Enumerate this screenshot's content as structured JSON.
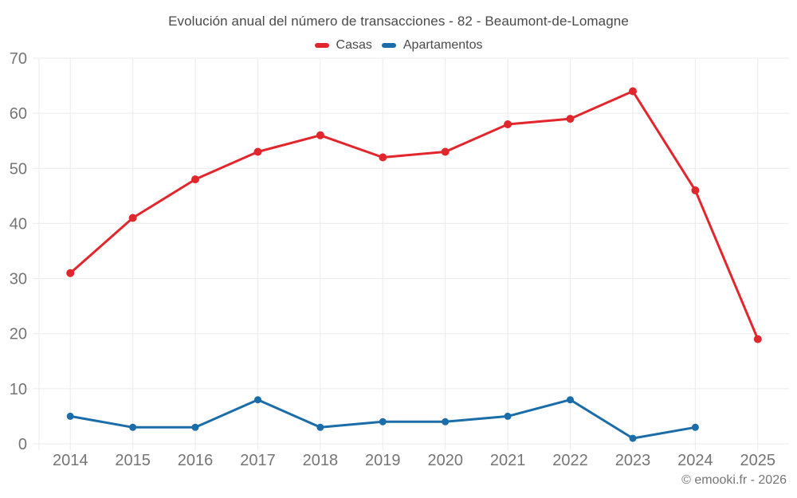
{
  "title": "Evolución anual del número de transacciones - 82 - Beaumont-de-Lomagne",
  "footer": {
    "copyright": "© emooki.fr - 2026"
  },
  "colors": {
    "casas": "#e2262d",
    "apartamentos": "#1a6da8",
    "grid": "#ebebeb",
    "axis_labels": "#757575",
    "text": "#4a4a4a"
  },
  "chart_data": {
    "type": "line",
    "title": "Evolución anual del número de transacciones - 82 - Beaumont-de-Lomagne",
    "categories": [
      "2014",
      "2015",
      "2016",
      "2017",
      "2018",
      "2019",
      "2020",
      "2021",
      "2022",
      "2023",
      "2024",
      "2025"
    ],
    "series": [
      {
        "name": "Casas",
        "color": "#e2262d",
        "values": [
          31,
          41,
          48,
          53,
          56,
          52,
          53,
          58,
          59,
          64,
          46,
          19
        ]
      },
      {
        "name": "Apartamentos",
        "color": "#1a6da8",
        "values": [
          5,
          3,
          3,
          8,
          3,
          4,
          4,
          5,
          8,
          1,
          3,
          null
        ]
      }
    ],
    "xlabel": "",
    "ylabel": "",
    "ylim": [
      0,
      70
    ],
    "y_ticks": [
      0,
      10,
      20,
      30,
      40,
      50,
      60,
      70
    ],
    "grid": true,
    "legend_position": "top",
    "grid_color": "#ebebeb",
    "axis_label_color": "#757575"
  }
}
